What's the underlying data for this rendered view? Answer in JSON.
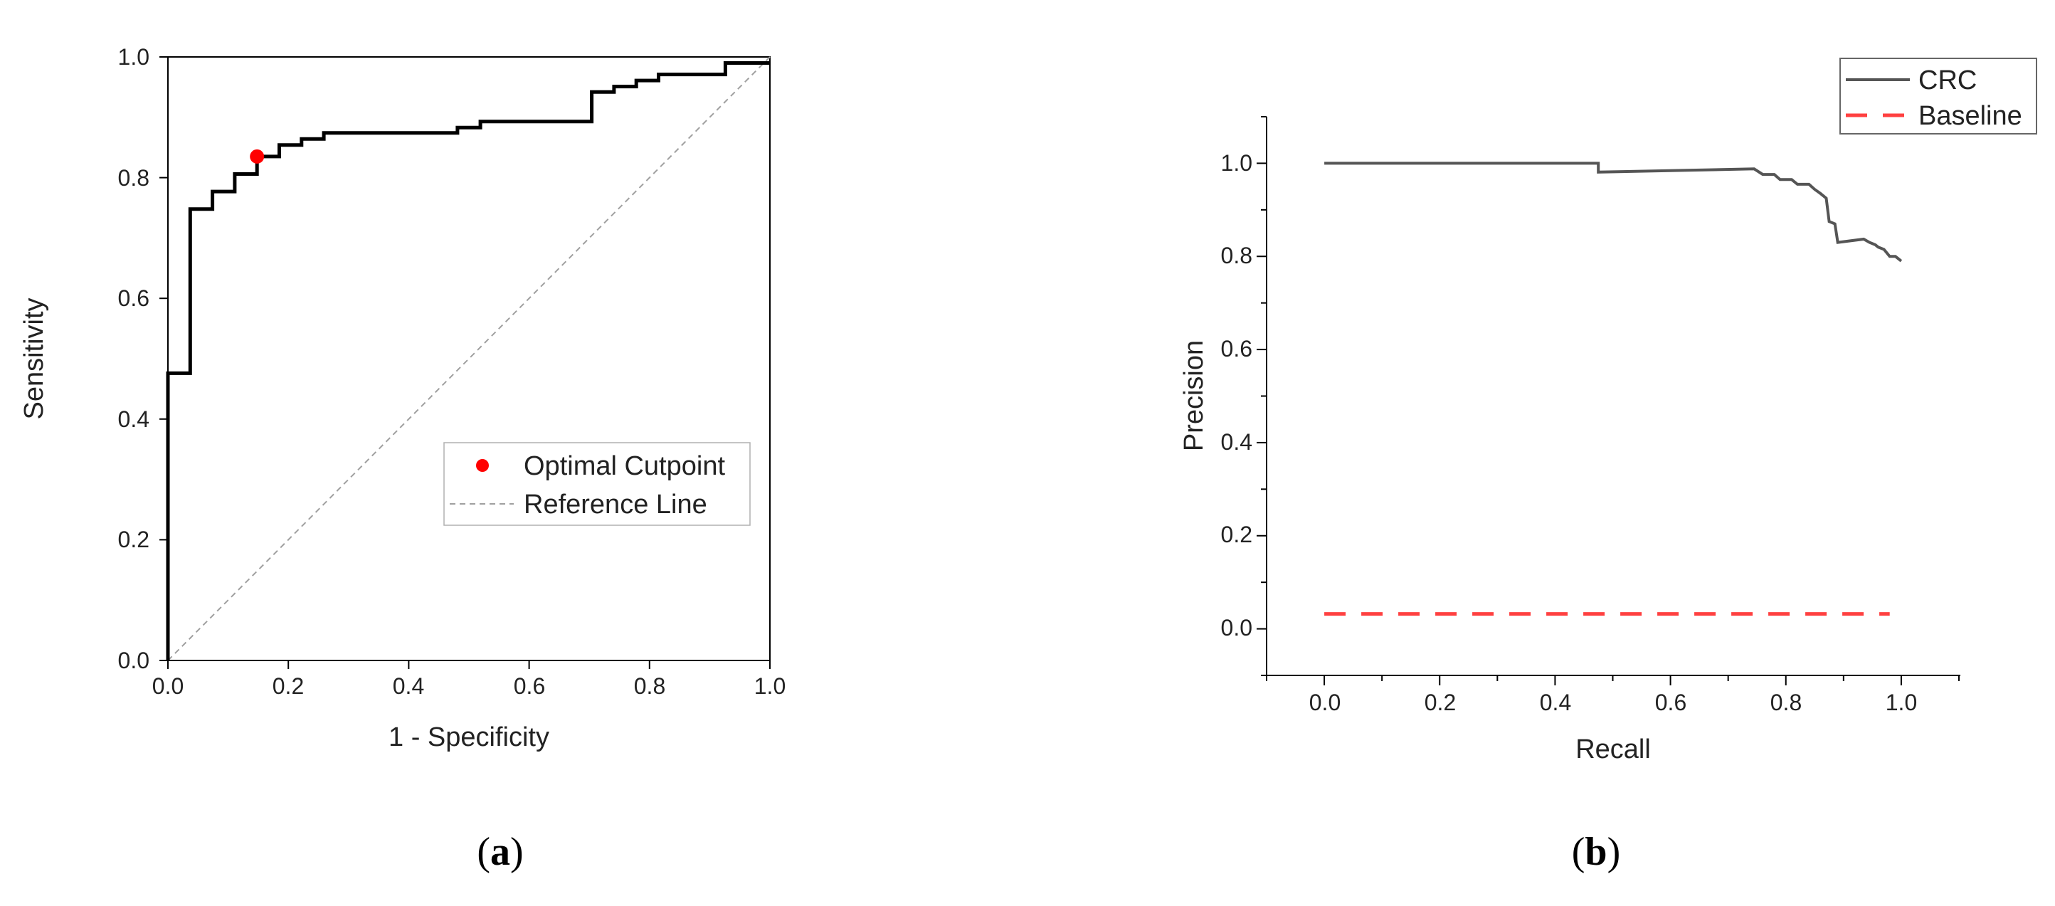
{
  "chart_data": [
    {
      "type": "line",
      "panel_label": "a",
      "xlabel": "1 - Specificity",
      "ylabel": "Sensitivity",
      "xlim": [
        0,
        1
      ],
      "ylim": [
        0,
        1
      ],
      "x_ticks": [
        "0.0",
        "0.2",
        "0.4",
        "0.6",
        "0.8",
        "1.0"
      ],
      "y_ticks": [
        "0.0",
        "0.2",
        "0.4",
        "0.6",
        "0.8",
        "1.0"
      ],
      "grid": false,
      "legend_position": "lower-right",
      "colors": {
        "roc": "#000000",
        "cutpoint": "#ff0000",
        "reference": "#a0a0a0"
      },
      "series": [
        {
          "style": "step",
          "x": [
            0,
            0,
            0.037,
            0.037,
            0.074,
            0.074,
            0.111,
            0.111,
            0.148,
            0.148,
            0.185,
            0.185,
            0.222,
            0.222,
            0.259,
            0.259,
            0.481,
            0.481,
            0.519,
            0.519,
            0.704,
            0.704,
            0.741,
            0.741,
            0.778,
            0.778,
            0.815,
            0.815,
            0.926,
            0.926,
            1.0
          ],
          "y": [
            0,
            0.476,
            0.476,
            0.748,
            0.748,
            0.777,
            0.777,
            0.806,
            0.806,
            0.835,
            0.835,
            0.854,
            0.854,
            0.864,
            0.864,
            0.874,
            0.874,
            0.883,
            0.883,
            0.893,
            0.893,
            0.942,
            0.942,
            0.951,
            0.951,
            0.961,
            0.961,
            0.971,
            0.971,
            0.99,
            0.99
          ]
        },
        {
          "name": "Optimal Cutpoint",
          "style": "point",
          "x": [
            0.148
          ],
          "y": [
            0.835
          ]
        },
        {
          "name": "Reference Line",
          "style": "dashed",
          "x": [
            0,
            1
          ],
          "y": [
            0,
            1
          ]
        }
      ]
    },
    {
      "type": "line",
      "panel_label": "b",
      "xlabel": "Recall",
      "ylabel": "Precision",
      "xlim": [
        -0.1,
        1.1
      ],
      "ylim": [
        -0.1,
        1.1
      ],
      "x_ticks": [
        "0.0",
        "0.2",
        "0.4",
        "0.6",
        "0.8",
        "1.0"
      ],
      "y_ticks": [
        "0.0",
        "0.2",
        "0.4",
        "0.6",
        "0.8",
        "1.0"
      ],
      "grid": false,
      "legend_position": "top-right",
      "colors": {
        "CRC": "#555555",
        "Baseline": "#ff4040"
      },
      "series": [
        {
          "name": "CRC",
          "style": "solid",
          "x": [
            0,
            0.475,
            0.475,
            0.745,
            0.76,
            0.78,
            0.79,
            0.81,
            0.82,
            0.84,
            0.85,
            0.86,
            0.87,
            0.875,
            0.885,
            0.89,
            0.935,
            0.945,
            0.955,
            0.96,
            0.97,
            0.98,
            0.99,
            1.0
          ],
          "y": [
            1.0,
            1.0,
            0.981,
            0.988,
            0.976,
            0.976,
            0.965,
            0.965,
            0.955,
            0.955,
            0.944,
            0.935,
            0.925,
            0.875,
            0.87,
            0.83,
            0.837,
            0.83,
            0.825,
            0.82,
            0.815,
            0.8,
            0.8,
            0.79
          ]
        },
        {
          "name": "Baseline",
          "style": "dashed",
          "x": [
            0,
            0.98
          ],
          "y": [
            0.032,
            0.032
          ]
        }
      ]
    }
  ]
}
